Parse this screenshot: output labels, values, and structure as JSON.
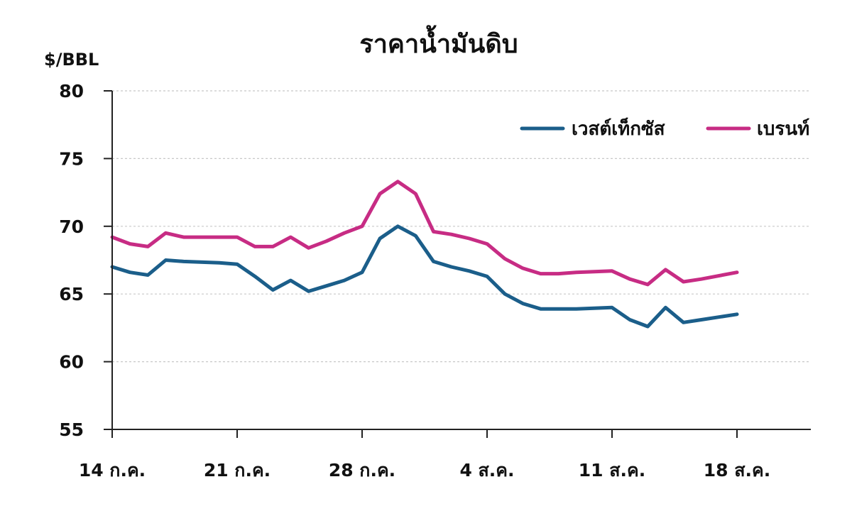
{
  "chart_data": {
    "type": "line",
    "title": "ราคาน้ำมันดิบ",
    "ylabel": "$/BBL",
    "xlabel": "",
    "ylim": [
      55,
      80
    ],
    "yticks": [
      55,
      60,
      65,
      70,
      75,
      80
    ],
    "grid": true,
    "legend_position": "top-right",
    "x_tick_labels": [
      {
        "x": "2018-07-14",
        "label": "14 ก.ค."
      },
      {
        "x": "2018-07-21",
        "label": "21 ก.ค."
      },
      {
        "x": "2018-07-28",
        "label": "28 ก.ค."
      },
      {
        "x": "2018-08-04",
        "label": "4 ส.ค."
      },
      {
        "x": "2018-08-11",
        "label": "11 ส.ค."
      },
      {
        "x": "2018-08-18",
        "label": "18 ส.ค."
      }
    ],
    "xlim": [
      "2018-07-14",
      "2018-08-18"
    ],
    "series": [
      {
        "name": "เวสต์เท็กซัส",
        "color": "#1b5e8a",
        "points": [
          {
            "x": "2018-07-14",
            "y": 67.0
          },
          {
            "x": "2018-07-15",
            "y": 66.6
          },
          {
            "x": "2018-07-16",
            "y": 66.4
          },
          {
            "x": "2018-07-17",
            "y": 67.5
          },
          {
            "x": "2018-07-18",
            "y": 67.4
          },
          {
            "x": "2018-07-20",
            "y": 67.3
          },
          {
            "x": "2018-07-21",
            "y": 67.2
          },
          {
            "x": "2018-07-22",
            "y": 66.3
          },
          {
            "x": "2018-07-23",
            "y": 65.3
          },
          {
            "x": "2018-07-24",
            "y": 66.0
          },
          {
            "x": "2018-07-25",
            "y": 65.2
          },
          {
            "x": "2018-07-26",
            "y": 65.6
          },
          {
            "x": "2018-07-27",
            "y": 66.0
          },
          {
            "x": "2018-07-28",
            "y": 66.6
          },
          {
            "x": "2018-07-29",
            "y": 69.1
          },
          {
            "x": "2018-07-30",
            "y": 70.0
          },
          {
            "x": "2018-07-31",
            "y": 69.3
          },
          {
            "x": "2018-08-01",
            "y": 67.4
          },
          {
            "x": "2018-08-02",
            "y": 67.0
          },
          {
            "x": "2018-08-03",
            "y": 66.7
          },
          {
            "x": "2018-08-04",
            "y": 66.3
          },
          {
            "x": "2018-08-05",
            "y": 65.0
          },
          {
            "x": "2018-08-06",
            "y": 64.3
          },
          {
            "x": "2018-08-07",
            "y": 63.9
          },
          {
            "x": "2018-08-08",
            "y": 63.9
          },
          {
            "x": "2018-08-09",
            "y": 63.9
          },
          {
            "x": "2018-08-11",
            "y": 64.0
          },
          {
            "x": "2018-08-12",
            "y": 63.1
          },
          {
            "x": "2018-08-13",
            "y": 62.6
          },
          {
            "x": "2018-08-14",
            "y": 64.0
          },
          {
            "x": "2018-08-15",
            "y": 62.9
          },
          {
            "x": "2018-08-16",
            "y": 63.1
          },
          {
            "x": "2018-08-18",
            "y": 63.5
          }
        ]
      },
      {
        "name": "เบรนท์",
        "color": "#c72c84",
        "points": [
          {
            "x": "2018-07-14",
            "y": 69.2
          },
          {
            "x": "2018-07-15",
            "y": 68.7
          },
          {
            "x": "2018-07-16",
            "y": 68.5
          },
          {
            "x": "2018-07-17",
            "y": 69.5
          },
          {
            "x": "2018-07-18",
            "y": 69.2
          },
          {
            "x": "2018-07-20",
            "y": 69.2
          },
          {
            "x": "2018-07-21",
            "y": 69.2
          },
          {
            "x": "2018-07-22",
            "y": 68.5
          },
          {
            "x": "2018-07-23",
            "y": 68.5
          },
          {
            "x": "2018-07-24",
            "y": 69.2
          },
          {
            "x": "2018-07-25",
            "y": 68.4
          },
          {
            "x": "2018-07-26",
            "y": 68.9
          },
          {
            "x": "2018-07-27",
            "y": 69.5
          },
          {
            "x": "2018-07-28",
            "y": 70.0
          },
          {
            "x": "2018-07-29",
            "y": 72.4
          },
          {
            "x": "2018-07-30",
            "y": 73.3
          },
          {
            "x": "2018-07-31",
            "y": 72.4
          },
          {
            "x": "2018-08-01",
            "y": 69.6
          },
          {
            "x": "2018-08-02",
            "y": 69.4
          },
          {
            "x": "2018-08-03",
            "y": 69.1
          },
          {
            "x": "2018-08-04",
            "y": 68.7
          },
          {
            "x": "2018-08-05",
            "y": 67.6
          },
          {
            "x": "2018-08-06",
            "y": 66.9
          },
          {
            "x": "2018-08-07",
            "y": 66.5
          },
          {
            "x": "2018-08-08",
            "y": 66.5
          },
          {
            "x": "2018-08-09",
            "y": 66.6
          },
          {
            "x": "2018-08-11",
            "y": 66.7
          },
          {
            "x": "2018-08-12",
            "y": 66.1
          },
          {
            "x": "2018-08-13",
            "y": 65.7
          },
          {
            "x": "2018-08-14",
            "y": 66.8
          },
          {
            "x": "2018-08-15",
            "y": 65.9
          },
          {
            "x": "2018-08-16",
            "y": 66.1
          },
          {
            "x": "2018-08-18",
            "y": 66.6
          }
        ]
      }
    ]
  }
}
